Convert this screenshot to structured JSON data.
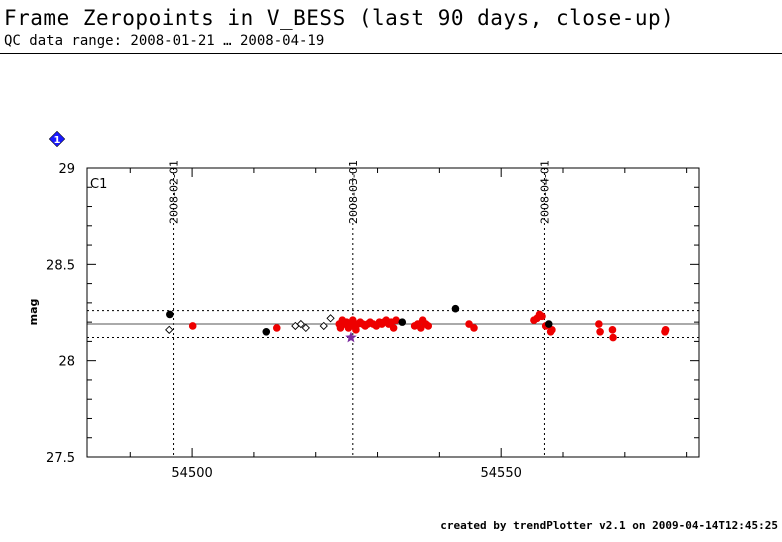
{
  "header": {
    "title": "Frame Zeropoints in V_BESS (last 90 days, close-up)",
    "subtitle": "QC data range: 2008-01-21 … 2008-04-19"
  },
  "footer": {
    "credit": "created by trendPlotter v2.1 on 2009-04-14T12:45:25"
  },
  "panel": {
    "badge_symbol": "1",
    "badge_color": "#1a1aff"
  },
  "chart_data": {
    "type": "scatter",
    "panel_label": "C1",
    "ylabel": "mag",
    "xlabel": "",
    "xlim": [
      54483,
      54582
    ],
    "ylim": [
      27.5,
      29
    ],
    "xticks": [
      54500,
      54550
    ],
    "yticks": [
      27.5,
      28,
      28.5,
      29
    ],
    "reference_lines": {
      "mean": 28.19,
      "upper": 28.26,
      "lower": 28.12
    },
    "date_markers": [
      {
        "x": 54497,
        "label": "2008-02-01"
      },
      {
        "x": 54526,
        "label": "2008-03-01"
      },
      {
        "x": 54557,
        "label": "2008-04-01"
      }
    ],
    "colors": {
      "good": "#ee0000",
      "other": "#000000",
      "open": "#ffffff",
      "special": "#7a2aa0"
    },
    "series": [
      {
        "marker": "filled-circle-red",
        "points": [
          [
            54500.1,
            28.18
          ],
          [
            54513.7,
            28.17
          ],
          [
            54523.8,
            28.19
          ],
          [
            54524.0,
            28.17
          ],
          [
            54524.3,
            28.21
          ],
          [
            54524.6,
            28.19
          ],
          [
            54525.0,
            28.2
          ],
          [
            54525.3,
            28.17
          ],
          [
            54525.6,
            28.19
          ],
          [
            54526.0,
            28.21
          ],
          [
            54526.2,
            28.18
          ],
          [
            54526.5,
            28.16
          ],
          [
            54526.8,
            28.19
          ],
          [
            54527.2,
            28.2
          ],
          [
            54527.6,
            28.19
          ],
          [
            54528.0,
            28.18
          ],
          [
            54528.4,
            28.19
          ],
          [
            54528.8,
            28.2
          ],
          [
            54529.3,
            28.19
          ],
          [
            54529.8,
            28.18
          ],
          [
            54530.3,
            28.2
          ],
          [
            54530.7,
            28.19
          ],
          [
            54531.0,
            28.2
          ],
          [
            54531.4,
            28.21
          ],
          [
            54531.8,
            28.19
          ],
          [
            54532.2,
            28.2
          ],
          [
            54532.6,
            28.17
          ],
          [
            54533.0,
            28.21
          ],
          [
            54536.0,
            28.18
          ],
          [
            54536.5,
            28.19
          ],
          [
            54537.0,
            28.17
          ],
          [
            54537.3,
            28.21
          ],
          [
            54537.8,
            28.19
          ],
          [
            54538.2,
            28.18
          ],
          [
            54544.8,
            28.19
          ],
          [
            54545.6,
            28.17
          ],
          [
            54555.3,
            28.21
          ],
          [
            54555.8,
            28.22
          ],
          [
            54556.2,
            28.24
          ],
          [
            54556.6,
            28.23
          ],
          [
            54557.2,
            28.18
          ],
          [
            54558.0,
            28.15
          ],
          [
            54558.2,
            28.16
          ],
          [
            54565.8,
            28.19
          ],
          [
            54566.0,
            28.15
          ],
          [
            54568.0,
            28.16
          ],
          [
            54568.1,
            28.12
          ],
          [
            54576.5,
            28.15
          ],
          [
            54576.6,
            28.16
          ]
        ]
      },
      {
        "marker": "filled-circle-black",
        "points": [
          [
            54496.4,
            28.24
          ],
          [
            54512.0,
            28.15
          ],
          [
            54534.0,
            28.2
          ],
          [
            54542.6,
            28.27
          ],
          [
            54557.7,
            28.19
          ]
        ]
      },
      {
        "marker": "open-diamond",
        "points": [
          [
            54496.3,
            28.16
          ],
          [
            54516.7,
            28.18
          ],
          [
            54517.6,
            28.19
          ],
          [
            54518.4,
            28.17
          ],
          [
            54521.3,
            28.18
          ],
          [
            54522.4,
            28.22
          ]
        ]
      },
      {
        "marker": "star",
        "points": [
          [
            54525.7,
            28.12
          ]
        ]
      }
    ]
  }
}
